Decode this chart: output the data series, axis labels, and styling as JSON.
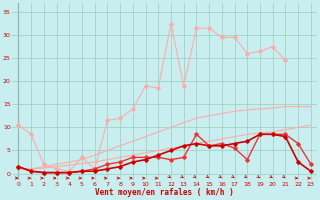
{
  "x": [
    0,
    1,
    2,
    3,
    4,
    5,
    6,
    7,
    8,
    9,
    10,
    11,
    12,
    13,
    14,
    15,
    16,
    17,
    18,
    19,
    20,
    21,
    22,
    23
  ],
  "line_rafales_max": [
    10.5,
    8.5,
    2.0,
    1.0,
    0.5,
    3.5,
    1.0,
    11.5,
    12.0,
    14.0,
    19.0,
    18.5,
    32.5,
    19.0,
    31.5,
    31.5,
    29.5,
    29.5,
    26.0,
    26.5,
    27.5,
    24.5,
    null,
    null
  ],
  "line_vent_moy": [
    1.5,
    0.5,
    0.2,
    0.2,
    0.2,
    0.5,
    1.0,
    2.0,
    2.5,
    3.5,
    3.5,
    3.5,
    3.0,
    3.5,
    8.5,
    6.0,
    6.5,
    5.5,
    3.0,
    8.5,
    8.5,
    8.5,
    6.5,
    2.0
  ],
  "line_smooth": [
    1.5,
    0.5,
    0.2,
    0.2,
    0.2,
    0.5,
    0.5,
    1.0,
    1.5,
    2.5,
    3.0,
    4.0,
    5.0,
    6.0,
    6.5,
    6.0,
    6.0,
    6.5,
    7.0,
    8.5,
    8.5,
    8.0,
    2.5,
    0.5
  ],
  "line_linear": [
    1.0,
    1.0,
    1.5,
    2.0,
    2.5,
    3.0,
    4.0,
    5.0,
    6.0,
    7.0,
    8.0,
    9.0,
    10.0,
    11.0,
    12.0,
    12.5,
    13.0,
    13.5,
    13.8,
    14.0,
    14.2,
    14.5,
    14.5,
    14.5
  ],
  "line_linear2": [
    1.0,
    1.0,
    1.2,
    1.5,
    1.8,
    2.2,
    2.5,
    3.0,
    3.5,
    4.0,
    4.5,
    5.0,
    5.5,
    6.0,
    6.5,
    7.0,
    7.5,
    8.0,
    8.5,
    8.8,
    9.0,
    9.5,
    10.0,
    10.5
  ],
  "color_light_pink": "#ffaaaa",
  "color_dark_red": "#cc0000",
  "color_medium_red": "#ee3333",
  "bg_color": "#c8eef0",
  "grid_color": "#99ccbb",
  "text_color": "#cc0000",
  "xlabel": "Vent moyen/en rafales ( km/h )",
  "xlim": [
    -0.5,
    23.5
  ],
  "ylim": [
    -1.5,
    37
  ],
  "yticks": [
    0,
    5,
    10,
    15,
    20,
    25,
    30,
    35
  ],
  "xticks": [
    0,
    1,
    2,
    3,
    4,
    5,
    6,
    7,
    8,
    9,
    10,
    11,
    12,
    13,
    14,
    15,
    16,
    17,
    18,
    19,
    20,
    21,
    22,
    23
  ],
  "arrow_angles": [
    270,
    270,
    270,
    270,
    270,
    270,
    270,
    270,
    270,
    270,
    270,
    270,
    225,
    225,
    225,
    225,
    225,
    225,
    225,
    225,
    225,
    225,
    270,
    270
  ]
}
